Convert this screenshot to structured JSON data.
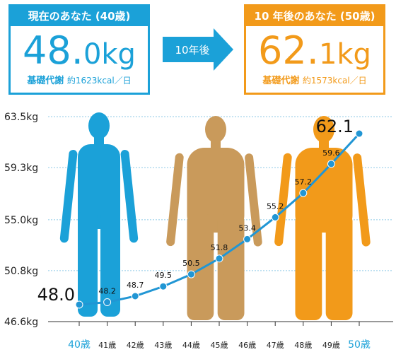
{
  "current": {
    "heading": "現在のあなた (40歳)",
    "weight_int": "48.",
    "weight_dec": "0",
    "unit": "kg",
    "bmr_label": "基礎代謝",
    "bmr_value": "約1623kcal／日"
  },
  "future": {
    "heading": "10 年後のあなた (50歳)",
    "weight_int": "62.",
    "weight_dec": "1",
    "unit": "kg",
    "bmr_label": "基礎代謝",
    "bmr_value": "約1573kcal／日"
  },
  "arrow_label": "10年後",
  "colors": {
    "blue": "#1ba1d8",
    "orange": "#f29a1a",
    "tan": "#c99a5b",
    "line": "#2196d4",
    "grid": "#8fc9e6"
  },
  "chart_data": {
    "type": "line",
    "categories": [
      "40歳",
      "41歳",
      "42歳",
      "43歳",
      "44歳",
      "45歳",
      "46歳",
      "47歳",
      "48歳",
      "49歳",
      "50歳"
    ],
    "values": [
      48.0,
      48.2,
      48.7,
      49.5,
      50.5,
      51.8,
      53.4,
      55.2,
      57.2,
      59.6,
      62.1
    ],
    "data_labels": [
      "48.0",
      "48.2",
      "48.7",
      "49.5",
      "50.5",
      "51.8",
      "53.4",
      "55.2",
      "57.2",
      "59.6",
      "62.1"
    ],
    "y_ticks": [
      "63.5kg",
      "59.3kg",
      "55.0kg",
      "50.8kg",
      "46.6kg"
    ],
    "y_tick_values": [
      63.5,
      59.3,
      55.0,
      50.8,
      46.6
    ],
    "ylim": [
      46.6,
      63.5
    ],
    "grid": true,
    "figures": [
      "blue-figure",
      "tan-figure",
      "orange-figure"
    ]
  }
}
